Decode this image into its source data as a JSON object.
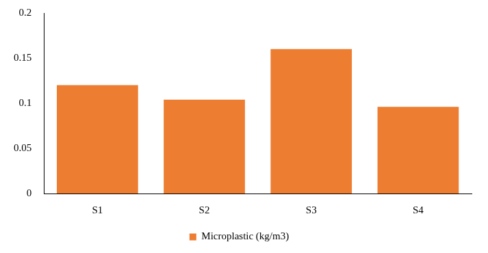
{
  "chart_data": {
    "type": "bar",
    "categories": [
      "S1",
      "S2",
      "S3",
      "S4"
    ],
    "series": [
      {
        "name": "Microplastic (kg/m3)",
        "color": "#ed7d31",
        "values": [
          0.12,
          0.104,
          0.16,
          0.096
        ]
      }
    ],
    "ylim": [
      0,
      0.2
    ],
    "yticks": [
      0,
      0.05,
      0.1,
      0.15,
      0.2
    ],
    "grid": false,
    "legend": "bottom"
  }
}
